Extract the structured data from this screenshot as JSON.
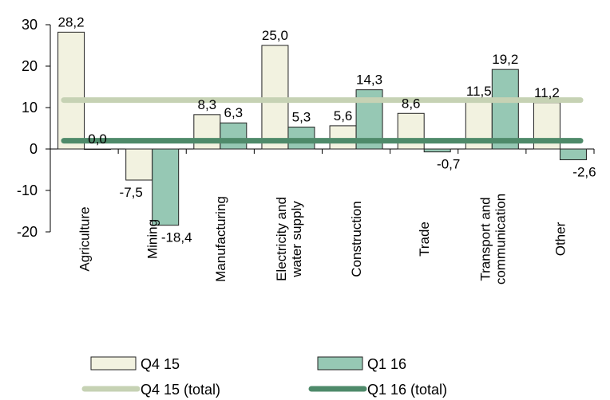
{
  "chart_data": {
    "type": "bar",
    "categories": [
      [
        "Agriculture"
      ],
      [
        "Mining"
      ],
      [
        "Manufacturing"
      ],
      [
        "Electricity and",
        "water supply"
      ],
      [
        "Construction"
      ],
      [
        "Trade"
      ],
      [
        "Transport and",
        "communication"
      ],
      [
        "Other"
      ]
    ],
    "series": [
      {
        "name": "Q4 15",
        "values": [
          28.2,
          -7.5,
          8.3,
          25.0,
          5.6,
          8.6,
          11.5,
          11.2
        ],
        "labels": [
          "28,2",
          "-7,5",
          "8,3",
          "25,0",
          "5,6",
          "8,6",
          "11,5",
          "11,2"
        ],
        "color": "#f2f2e0"
      },
      {
        "name": "Q1 16",
        "values": [
          0.0,
          -18.4,
          6.3,
          5.3,
          14.3,
          -0.7,
          19.2,
          -2.6
        ],
        "labels": [
          "0,0",
          "-18,4",
          "6,3",
          "5,3",
          "14,3",
          "-0,7",
          "19,2",
          "-2,6"
        ],
        "color": "#96c8b4"
      }
    ],
    "total_lines": [
      {
        "name": "Q4 15 (total)",
        "value": 11.8,
        "color": "#c6d2b4"
      },
      {
        "name": "Q1 16 (total)",
        "value": 2.0,
        "color": "#4e8a6a"
      }
    ],
    "ylim": [
      -20,
      30
    ],
    "yticks": [
      -20,
      -10,
      0,
      10,
      20,
      30
    ],
    "ytick_labels": [
      "-20",
      "-10",
      "0",
      "10",
      "20",
      "30"
    ],
    "grid": false,
    "legend_position": "bottom"
  }
}
